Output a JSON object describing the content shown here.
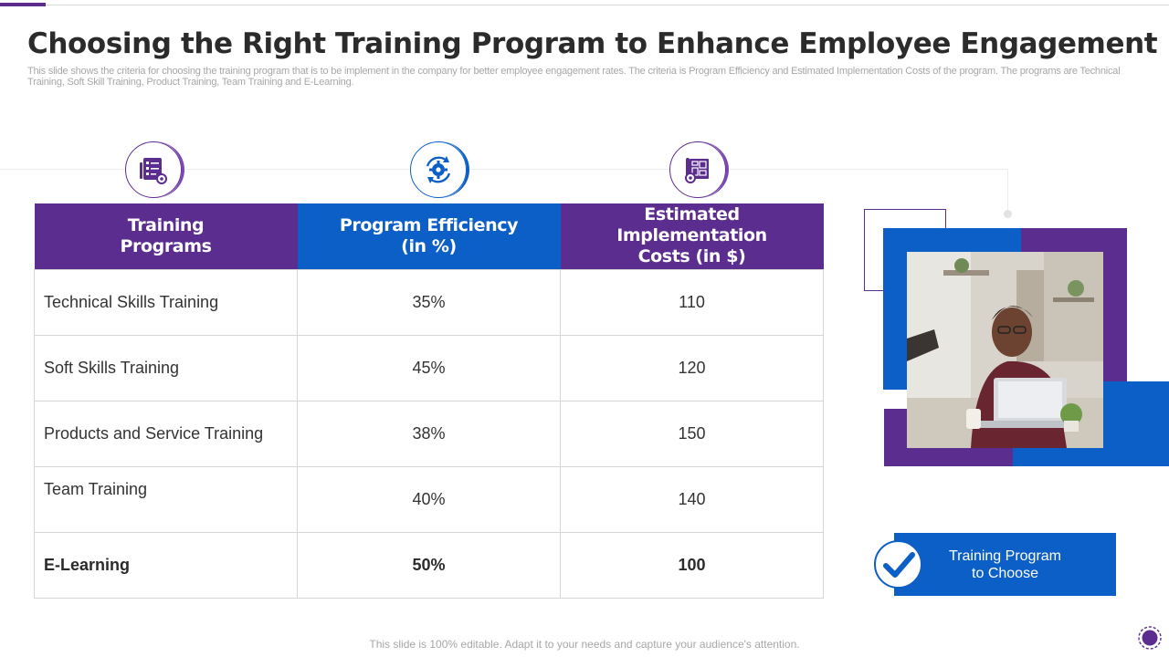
{
  "slide": {
    "title": "Choosing the Right Training Program to Enhance Employee Engagement",
    "subtitle": "This slide shows the criteria for choosing the training program that is to be implement in the company for better employee engagement rates. The criteria is Program Efficiency and Estimated Implementation Costs of the program. The programs are Technical Training, Soft Skill Training, Product Training, Team Training and E-Learning."
  },
  "icons": [
    "checklist-icon",
    "gear-cycle-icon",
    "blueprint-gear-icon"
  ],
  "table": {
    "headers": {
      "program": "Training\nPrograms",
      "efficiency": "Program Efficiency\n(in %)",
      "cost": "Estimated Implementation\nCosts (in $)"
    },
    "rows": [
      {
        "program": "Technical Skills Training",
        "efficiency": "35%",
        "cost": "110"
      },
      {
        "program": "Soft Skills Training",
        "efficiency": "45%",
        "cost": "120"
      },
      {
        "program": "Products and Service Training",
        "efficiency": "38%",
        "cost": "150"
      },
      {
        "program": "Team Training",
        "efficiency": "40%",
        "cost": "140"
      },
      {
        "program": "E-Learning",
        "efficiency": "50%",
        "cost": "100"
      }
    ]
  },
  "choose_label": "Training Program\nto Choose",
  "footer": "This slide is 100% editable. Adapt it to your needs and capture your audience's attention.",
  "colors": {
    "purple": "#5b2d8e",
    "blue": "#0c5fc6"
  }
}
